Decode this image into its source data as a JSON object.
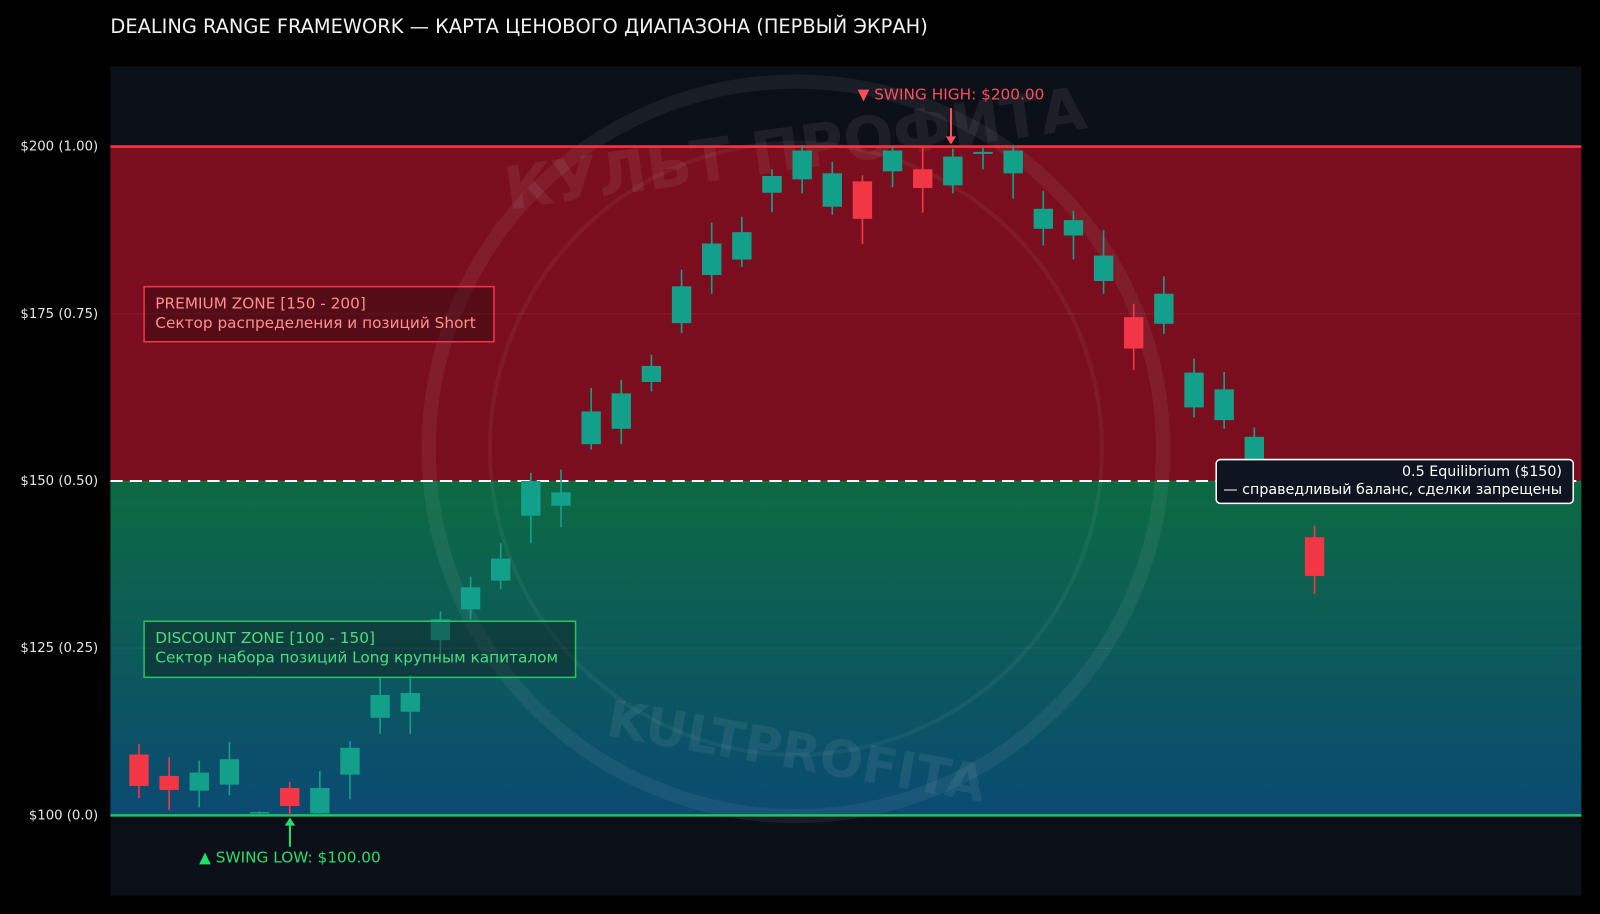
{
  "chart_data": {
    "type": "candlestick",
    "title": "DEALING RANGE FRAMEWORK — КАРТА ЦЕНОВОГО ДИАПАЗОНА (ПЕРВЫЙ ЭКРАН)",
    "ylim": [
      88,
      212
    ],
    "yticks": [
      {
        "value": 100,
        "label": "$100 (0.0)"
      },
      {
        "value": 125,
        "label": "$125 (0.25)"
      },
      {
        "value": 150,
        "label": "$150 (0.50)"
      },
      {
        "value": 175,
        "label": "$175 (0.75)"
      },
      {
        "value": 200,
        "label": "$200 (1.00)"
      }
    ],
    "grid": true,
    "up_color": "#12a08a",
    "down_color": "#f23645",
    "series": {
      "open": [
        109.1,
        105.9,
        103.7,
        104.6,
        100.4,
        104.1,
        100.3,
        106.1,
        114.6,
        115.5,
        126.2,
        130.8,
        135.1,
        144.8,
        146.3,
        155.5,
        157.8,
        164.8,
        173.6,
        180.8,
        183.1,
        193.1,
        195.1,
        191,
        194.8,
        196.3,
        196.6,
        194.2,
        198.9,
        196,
        187.7,
        186.7,
        179.9,
        174.5,
        173.5,
        161,
        159.1,
        153,
        null,
        141.6
      ],
      "high": [
        110.7,
        108.7,
        108.2,
        111,
        100.6,
        105,
        106.6,
        111.1,
        120.6,
        121,
        130.5,
        135.7,
        140.7,
        151.2,
        151.7,
        163.9,
        165.1,
        168.9,
        181.6,
        188.6,
        189.5,
        196.6,
        200.2,
        197.7,
        195.7,
        200,
        199.8,
        199.7,
        199.8,
        200.2,
        193.4,
        190.4,
        187.5,
        176.5,
        180.6,
        168.3,
        166.3,
        158,
        null,
        143.3
      ],
      "low": [
        102.6,
        100.8,
        101.2,
        103,
        100.2,
        100,
        100,
        102.4,
        112.2,
        112.2,
        124,
        129.3,
        133.8,
        140.7,
        143.1,
        154.7,
        155.5,
        163.4,
        172.1,
        178,
        182,
        190.2,
        193,
        189.8,
        185.4,
        193.9,
        190.1,
        193,
        196.6,
        192.2,
        185.2,
        183.1,
        178,
        166.6,
        172,
        159.5,
        157.8,
        152,
        null,
        133.1
      ],
      "close": [
        104.4,
        103.8,
        106.4,
        108.4,
        100.5,
        101.4,
        104.1,
        110.1,
        118,
        118.3,
        129.3,
        134.1,
        138.4,
        150,
        148.3,
        160.4,
        163.1,
        167.2,
        179.1,
        185.5,
        187.2,
        195.6,
        199.4,
        196,
        189.2,
        199.4,
        193.8,
        198.5,
        199.2,
        199.4,
        190.7,
        189,
        183.7,
        169.8,
        178,
        166.2,
        163.7,
        156.6,
        null,
        135.8
      ]
    },
    "levels": [
      {
        "value": 200,
        "color": "#f23645",
        "style": "solid"
      },
      {
        "value": 150,
        "color": "#ffffff",
        "style": "dashed"
      },
      {
        "value": 100,
        "color": "#22c55e",
        "style": "solid"
      }
    ],
    "zones": [
      {
        "from": 150,
        "to": 200,
        "color": "#7a0e1e",
        "color2": "#7a0e1e",
        "accent": "#f23645",
        "text_color": "#ff8f8f",
        "label": "PREMIUM ZONE [150 - 200]",
        "description": "Сектор распределения и позиций Short"
      },
      {
        "from": 100,
        "to": 150,
        "color": "#0c6a42",
        "color2": "#0b4a72",
        "accent": "#22c55e",
        "text_color": "#4ade80",
        "label": "DISCOUNT ZONE [100 - 150]",
        "description": "Сектор набора позиций Long крупным капиталом"
      }
    ],
    "annotations": {
      "swing_high": {
        "text": "▼ SWING HIGH: $200.00",
        "value": 200,
        "color": "#ff4d5e"
      },
      "swing_low": {
        "text": "▲ SWING LOW: $100.00",
        "value": 100,
        "color": "#22e06b"
      },
      "equilibrium": {
        "title": "0.5 Equilibrium ($150)",
        "text": "— справедливый баланс, сделки запрещены",
        "value": 150
      }
    },
    "watermark": [
      "КУЛЬТ ПРОФИТА",
      "KULTPROFITA"
    ]
  }
}
